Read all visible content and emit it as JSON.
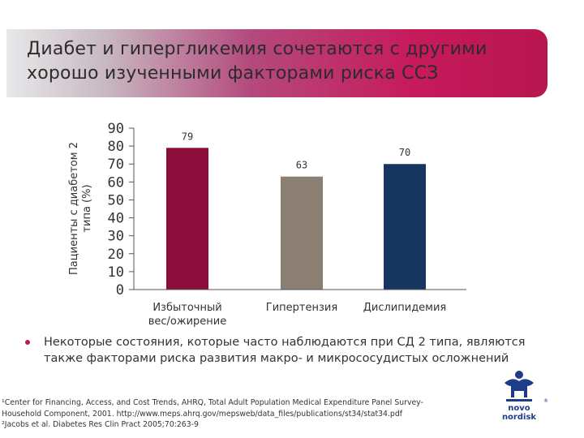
{
  "slide": {
    "title": "Диабет и гипергликемия сочетаются с другими\nхорошо изученными факторами риска ССЗ",
    "bullet": "Некоторые состояния, которые часто наблюдаются при СД 2 типа, являются также факторами риска развития макро- и микрососудистых осложнений",
    "references": [
      "¹Center for Financing, Access, and Cost Trends, AHRQ, Total Adult Population Medical Expenditure Panel Survey-",
      "Household Component, 2001. http://www.meps.ahrq.gov/mepsweb/data_files/publications/st34/stat34.pdf",
      "²Jacobs et al. Diabetes Res Clin Pract 2005;70:263-9"
    ],
    "logo_text": "novo nordisk",
    "logo_icon": "bull-logo-icon"
  },
  "chart_data": {
    "type": "bar",
    "title": "",
    "xlabel": "",
    "ylabel": "Пациенты с диабетом 2\nтипа (%)",
    "ylim": [
      0,
      90
    ],
    "yticks": [
      0,
      10,
      20,
      30,
      40,
      50,
      60,
      70,
      80,
      90
    ],
    "categories": [
      "Избыточный\nвес/ожирение",
      "Гипертензия",
      "Дислипидемия"
    ],
    "values": [
      79,
      63,
      70
    ],
    "data_labels": [
      "79",
      "63",
      "70"
    ],
    "colors": [
      "#8b0d3a",
      "#8b7f73",
      "#16365f"
    ],
    "grid": false,
    "legend": "none"
  }
}
